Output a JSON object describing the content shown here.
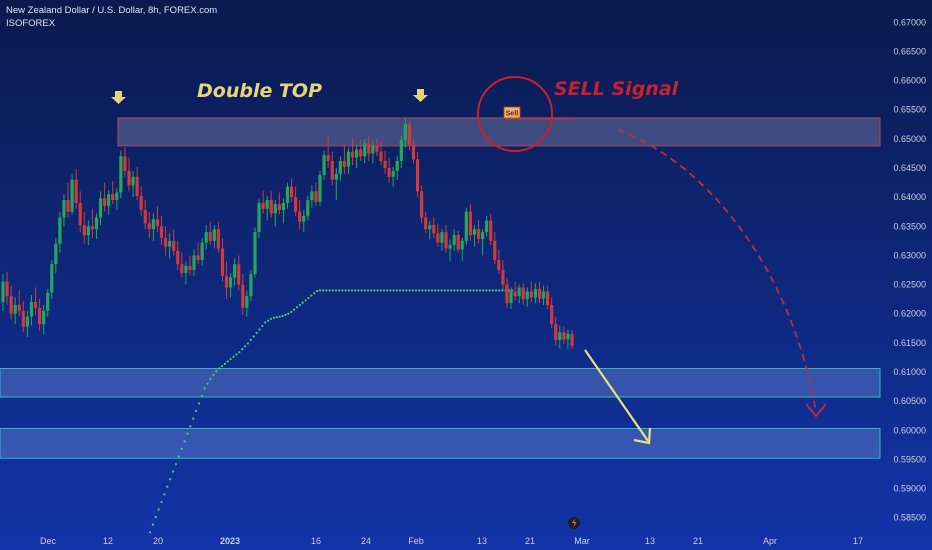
{
  "header": {
    "title": "New Zealand Dollar / U.S. Dollar, 8h, FOREX.com",
    "author": "ISOFOREX"
  },
  "colors": {
    "background_top": "#0a1a4d",
    "background_bottom": "#1234a8",
    "bull": "#26a65b",
    "bear": "#d23a3a",
    "dots": "#3fd46a",
    "resistance_zone": "#b0485a",
    "support_zone": "#2fb9c0",
    "double_top_text": "#e6d37a",
    "sell_text": "#c8202e",
    "arrow_yellow": "#e8e27a",
    "arrow_red": "#b8303a"
  },
  "chart_data": {
    "type": "candlestick",
    "symbol": "NZDUSD",
    "timeframe": "8h",
    "y_range": [
      0.5846,
      0.6728
    ],
    "y_ticks": [
      "0.67000",
      "0.66500",
      "0.66000",
      "0.65500",
      "0.65000",
      "0.64500",
      "0.64000",
      "0.63500",
      "0.63000",
      "0.62500",
      "0.62000",
      "0.61500",
      "0.61000",
      "0.60500",
      "0.60000",
      "0.59500",
      "0.59000",
      "0.58500"
    ],
    "x_ticks": [
      "Dec",
      "12",
      "20",
      "2023",
      "16",
      "24",
      "Feb",
      "13",
      "21",
      "Mar",
      "13",
      "21",
      "Apr",
      "17"
    ],
    "zones": [
      {
        "name": "resistance",
        "low": 0.6488,
        "high": 0.6536
      },
      {
        "name": "support-1",
        "low": 0.6057,
        "high": 0.6106
      },
      {
        "name": "support-2",
        "low": 0.5952,
        "high": 0.6003
      }
    ],
    "annotations": {
      "double_top": "Double TOP",
      "sell_signal": "SELL Signal",
      "sell_badge": "Sell"
    },
    "dots": [
      [
        0.5825,
        0.5838,
        0.5851,
        0.5864,
        0.5877,
        0.589,
        0.5903,
        0.5916,
        0.5929,
        0.5942,
        0.5955,
        0.5968,
        0.5981,
        0.5994,
        0.6007,
        0.602,
        0.6033,
        0.6046,
        0.6059,
        0.6072,
        0.608,
        0.6088,
        0.6095,
        0.6101,
        0.6106,
        0.611,
        0.6114,
        0.6118,
        0.6122,
        0.6126,
        0.613,
        0.6134,
        0.6139,
        0.6144,
        0.6149,
        0.6155,
        0.6161,
        0.6167,
        0.6173,
        0.6179,
        0.6185,
        0.6188,
        0.6191,
        0.6193,
        0.6194,
        0.6195,
        0.6196,
        0.6198,
        0.62,
        0.6203,
        0.6207,
        0.6211,
        0.6215,
        0.6219,
        0.6223,
        0.6227,
        0.6231,
        0.6235,
        0.6239,
        0.624
      ]
    ],
    "candles": [
      [
        0.622,
        0.6268,
        0.6205,
        0.6255
      ],
      [
        0.6255,
        0.6272,
        0.6215,
        0.623
      ],
      [
        0.623,
        0.6248,
        0.619,
        0.62
      ],
      [
        0.62,
        0.6228,
        0.6182,
        0.6215
      ],
      [
        0.6215,
        0.624,
        0.6195,
        0.6205
      ],
      [
        0.6205,
        0.6222,
        0.6168,
        0.6178
      ],
      [
        0.6178,
        0.6205,
        0.616,
        0.6195
      ],
      [
        0.6195,
        0.6232,
        0.618,
        0.622
      ],
      [
        0.622,
        0.6245,
        0.6198,
        0.621
      ],
      [
        0.621,
        0.6225,
        0.617,
        0.6182
      ],
      [
        0.6182,
        0.6215,
        0.6165,
        0.6205
      ],
      [
        0.6205,
        0.6242,
        0.6195,
        0.6236
      ],
      [
        0.6236,
        0.6292,
        0.6225,
        0.6285
      ],
      [
        0.6285,
        0.633,
        0.627,
        0.632
      ],
      [
        0.632,
        0.6375,
        0.6305,
        0.6365
      ],
      [
        0.6365,
        0.6405,
        0.635,
        0.6395
      ],
      [
        0.6395,
        0.6425,
        0.6365,
        0.6375
      ],
      [
        0.6375,
        0.644,
        0.637,
        0.643
      ],
      [
        0.643,
        0.6448,
        0.638,
        0.639
      ],
      [
        0.639,
        0.641,
        0.634,
        0.6352
      ],
      [
        0.6352,
        0.6375,
        0.632,
        0.6335
      ],
      [
        0.6335,
        0.636,
        0.6318,
        0.635
      ],
      [
        0.635,
        0.638,
        0.633,
        0.6345
      ],
      [
        0.6345,
        0.6372,
        0.6328,
        0.6365
      ],
      [
        0.6365,
        0.641,
        0.6352,
        0.6398
      ],
      [
        0.6398,
        0.6425,
        0.6375,
        0.6385
      ],
      [
        0.6385,
        0.6412,
        0.637,
        0.6405
      ],
      [
        0.6405,
        0.6428,
        0.6388,
        0.6395
      ],
      [
        0.6395,
        0.6415,
        0.6378,
        0.6408
      ],
      [
        0.6408,
        0.648,
        0.6398,
        0.647
      ],
      [
        0.647,
        0.6485,
        0.6435,
        0.6445
      ],
      [
        0.6445,
        0.6468,
        0.641,
        0.642
      ],
      [
        0.642,
        0.6445,
        0.64,
        0.6435
      ],
      [
        0.6435,
        0.6452,
        0.6395,
        0.6402
      ],
      [
        0.6402,
        0.6418,
        0.6368,
        0.6378
      ],
      [
        0.6378,
        0.6395,
        0.6345,
        0.6355
      ],
      [
        0.6355,
        0.6375,
        0.633,
        0.6345
      ],
      [
        0.6345,
        0.6372,
        0.6325,
        0.6362
      ],
      [
        0.6362,
        0.6385,
        0.634,
        0.635
      ],
      [
        0.635,
        0.6368,
        0.6318,
        0.633
      ],
      [
        0.633,
        0.635,
        0.63,
        0.6315
      ],
      [
        0.6315,
        0.6338,
        0.6295,
        0.6325
      ],
      [
        0.6325,
        0.6345,
        0.63,
        0.6308
      ],
      [
        0.6308,
        0.6325,
        0.6275,
        0.6285
      ],
      [
        0.6285,
        0.6305,
        0.6262,
        0.627
      ],
      [
        0.627,
        0.629,
        0.625,
        0.6282
      ],
      [
        0.6282,
        0.63,
        0.6265,
        0.6275
      ],
      [
        0.6275,
        0.631,
        0.6265,
        0.63
      ],
      [
        0.63,
        0.6322,
        0.6285,
        0.6292
      ],
      [
        0.6292,
        0.633,
        0.6282,
        0.6322
      ],
      [
        0.6322,
        0.6352,
        0.631,
        0.634
      ],
      [
        0.634,
        0.6358,
        0.6318,
        0.6325
      ],
      [
        0.6325,
        0.6352,
        0.6312,
        0.6345
      ],
      [
        0.6345,
        0.6358,
        0.6305,
        0.6312
      ],
      [
        0.6312,
        0.633,
        0.6255,
        0.6265
      ],
      [
        0.6265,
        0.629,
        0.6225,
        0.6245
      ],
      [
        0.6245,
        0.627,
        0.6228,
        0.6262
      ],
      [
        0.6262,
        0.6295,
        0.6248,
        0.6285
      ],
      [
        0.6285,
        0.63,
        0.624,
        0.625
      ],
      [
        0.625,
        0.6268,
        0.6198,
        0.621
      ],
      [
        0.621,
        0.624,
        0.6195,
        0.623
      ],
      [
        0.623,
        0.6275,
        0.6222,
        0.6268
      ],
      [
        0.6268,
        0.6348,
        0.6262,
        0.634
      ],
      [
        0.634,
        0.6398,
        0.633,
        0.639
      ],
      [
        0.639,
        0.6412,
        0.6372,
        0.638
      ],
      [
        0.638,
        0.6402,
        0.636,
        0.6395
      ],
      [
        0.6395,
        0.641,
        0.6365,
        0.6372
      ],
      [
        0.6372,
        0.6395,
        0.635,
        0.6388
      ],
      [
        0.6388,
        0.6408,
        0.637,
        0.6378
      ],
      [
        0.6378,
        0.6398,
        0.6355,
        0.639
      ],
      [
        0.639,
        0.6425,
        0.638,
        0.6418
      ],
      [
        0.6418,
        0.6432,
        0.6392,
        0.64
      ],
      [
        0.64,
        0.6418,
        0.6368,
        0.6375
      ],
      [
        0.6375,
        0.6395,
        0.6345,
        0.6358
      ],
      [
        0.6358,
        0.6378,
        0.634,
        0.6368
      ],
      [
        0.6368,
        0.6402,
        0.636,
        0.6395
      ],
      [
        0.6395,
        0.642,
        0.6382,
        0.641
      ],
      [
        0.641,
        0.6425,
        0.6385,
        0.6392
      ],
      [
        0.6392,
        0.6445,
        0.6385,
        0.6438
      ],
      [
        0.6438,
        0.648,
        0.643,
        0.6472
      ],
      [
        0.6472,
        0.6505,
        0.645,
        0.6462
      ],
      [
        0.6462,
        0.6478,
        0.642,
        0.643
      ],
      [
        0.643,
        0.645,
        0.6395,
        0.644
      ],
      [
        0.644,
        0.647,
        0.6428,
        0.6462
      ],
      [
        0.6462,
        0.6492,
        0.644,
        0.6452
      ],
      [
        0.6452,
        0.6485,
        0.644,
        0.6478
      ],
      [
        0.6478,
        0.6502,
        0.6455,
        0.6468
      ],
      [
        0.6468,
        0.649,
        0.645,
        0.6482
      ],
      [
        0.6482,
        0.6498,
        0.6462,
        0.647
      ],
      [
        0.647,
        0.65,
        0.6458,
        0.6492
      ],
      [
        0.6492,
        0.6505,
        0.6462,
        0.6475
      ],
      [
        0.6475,
        0.6498,
        0.6458,
        0.6488
      ],
      [
        0.6488,
        0.65,
        0.647,
        0.6478
      ],
      [
        0.6478,
        0.6495,
        0.6455,
        0.6462
      ],
      [
        0.6462,
        0.648,
        0.644,
        0.645
      ],
      [
        0.645,
        0.6468,
        0.6425,
        0.6435
      ],
      [
        0.6435,
        0.6452,
        0.6418,
        0.6445
      ],
      [
        0.6445,
        0.647,
        0.643,
        0.6462
      ],
      [
        0.6462,
        0.6505,
        0.645,
        0.6498
      ],
      [
        0.6498,
        0.6535,
        0.6485,
        0.6525
      ],
      [
        0.6525,
        0.653,
        0.648,
        0.649
      ],
      [
        0.649,
        0.65,
        0.6458,
        0.6465
      ],
      [
        0.6465,
        0.6478,
        0.64,
        0.641
      ],
      [
        0.641,
        0.642,
        0.6355,
        0.6365
      ],
      [
        0.6365,
        0.6375,
        0.6338,
        0.6345
      ],
      [
        0.6345,
        0.636,
        0.6328,
        0.6352
      ],
      [
        0.6352,
        0.6365,
        0.633,
        0.6338
      ],
      [
        0.6338,
        0.6355,
        0.6315,
        0.6322
      ],
      [
        0.6322,
        0.6345,
        0.6308,
        0.634
      ],
      [
        0.634,
        0.6352,
        0.6305,
        0.6312
      ],
      [
        0.6312,
        0.6328,
        0.629,
        0.6318
      ],
      [
        0.6318,
        0.6345,
        0.6308,
        0.6335
      ],
      [
        0.6335,
        0.6342,
        0.6305,
        0.631
      ],
      [
        0.631,
        0.633,
        0.629,
        0.6325
      ],
      [
        0.6325,
        0.6382,
        0.6318,
        0.6375
      ],
      [
        0.6375,
        0.6388,
        0.6325,
        0.6335
      ],
      [
        0.6335,
        0.6352,
        0.6315,
        0.6345
      ],
      [
        0.6345,
        0.636,
        0.632,
        0.6328
      ],
      [
        0.6328,
        0.6345,
        0.63,
        0.634
      ],
      [
        0.634,
        0.6368,
        0.6332,
        0.636
      ],
      [
        0.636,
        0.6372,
        0.6318,
        0.6325
      ],
      [
        0.6325,
        0.634,
        0.6285,
        0.6292
      ],
      [
        0.6292,
        0.631,
        0.6268,
        0.6275
      ],
      [
        0.6275,
        0.6292,
        0.6242,
        0.625
      ],
      [
        0.625,
        0.6262,
        0.621,
        0.6218
      ],
      [
        0.6218,
        0.6245,
        0.6208,
        0.6238
      ],
      [
        0.6238,
        0.6255,
        0.6222,
        0.623
      ],
      [
        0.623,
        0.625,
        0.6218,
        0.6245
      ],
      [
        0.6245,
        0.6252,
        0.6215,
        0.6225
      ],
      [
        0.6225,
        0.6245,
        0.6212,
        0.6238
      ],
      [
        0.6238,
        0.6255,
        0.622,
        0.6228
      ],
      [
        0.6228,
        0.6252,
        0.6218,
        0.6242
      ],
      [
        0.6242,
        0.6255,
        0.6218,
        0.6226
      ],
      [
        0.6226,
        0.6248,
        0.6215,
        0.6238
      ],
      [
        0.6238,
        0.6248,
        0.6208,
        0.6215
      ],
      [
        0.6215,
        0.6228,
        0.6175,
        0.6182
      ],
      [
        0.6182,
        0.6195,
        0.6145,
        0.6155
      ],
      [
        0.6155,
        0.618,
        0.614,
        0.6168
      ],
      [
        0.6168,
        0.6178,
        0.6148,
        0.6156
      ],
      [
        0.6156,
        0.6172,
        0.614,
        0.6165
      ],
      [
        0.6165,
        0.6172,
        0.614,
        0.6145
      ]
    ]
  }
}
